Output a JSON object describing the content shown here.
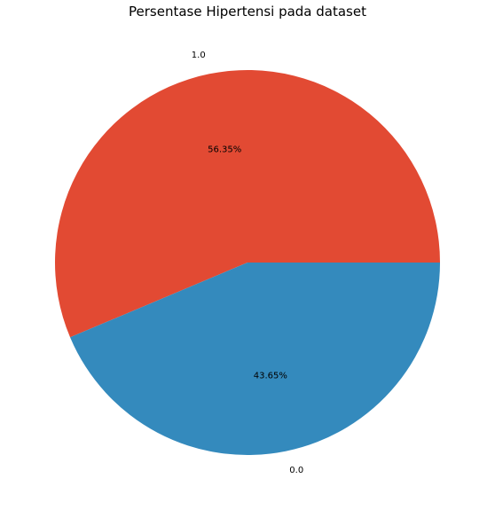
{
  "chart_data": {
    "type": "pie",
    "title": "Persentase Hipertensi pada dataset",
    "slices": [
      {
        "label": "1.0",
        "value": 56.35,
        "pct_label": "56.35%",
        "color": "#E24A33"
      },
      {
        "label": "0.0",
        "value": 43.65,
        "pct_label": "43.65%",
        "color": "#348ABD"
      }
    ],
    "start_angle_deg": 0,
    "direction": "counterclockwise",
    "legend": "none"
  }
}
